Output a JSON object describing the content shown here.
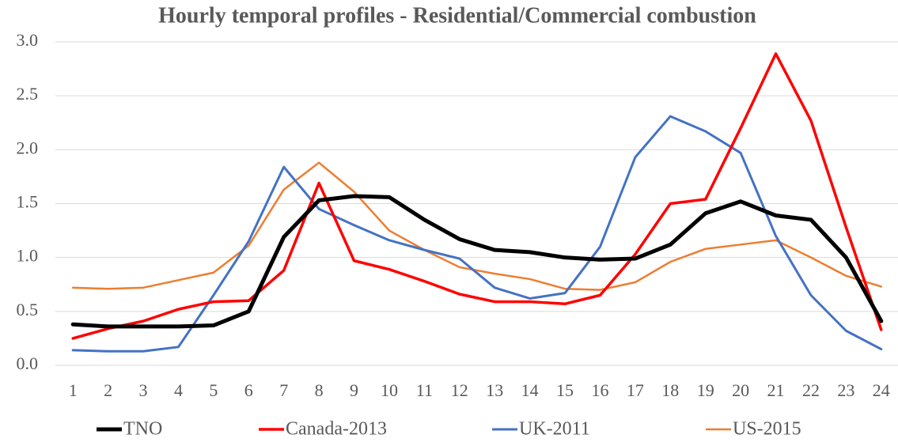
{
  "chart_data": {
    "type": "line",
    "title": "Hourly temporal profiles - Residential/Commercial combustion",
    "categories": [
      "1",
      "2",
      "3",
      "4",
      "5",
      "6",
      "7",
      "8",
      "9",
      "10",
      "11",
      "12",
      "13",
      "14",
      "15",
      "16",
      "17",
      "18",
      "19",
      "20",
      "21",
      "22",
      "23",
      "24"
    ],
    "series": [
      {
        "name": "TNO",
        "color": "#000000",
        "values": [
          0.38,
          0.36,
          0.36,
          0.36,
          0.37,
          0.5,
          1.19,
          1.53,
          1.57,
          1.56,
          1.35,
          1.17,
          1.07,
          1.05,
          1.0,
          0.98,
          0.99,
          1.12,
          1.41,
          1.52,
          1.39,
          1.35,
          1.0,
          0.41
        ]
      },
      {
        "name": "Canada-2013",
        "color": "#ff0000",
        "values": [
          0.25,
          0.34,
          0.41,
          0.52,
          0.59,
          0.6,
          0.88,
          1.69,
          0.97,
          0.89,
          0.78,
          0.66,
          0.59,
          0.59,
          0.57,
          0.65,
          1.03,
          1.5,
          1.54,
          2.2,
          2.89,
          2.27,
          1.28,
          0.33
        ]
      },
      {
        "name": "UK-2011",
        "color": "#4472c4",
        "values": [
          0.14,
          0.13,
          0.13,
          0.17,
          0.65,
          1.15,
          1.84,
          1.45,
          1.3,
          1.16,
          1.07,
          0.99,
          0.72,
          0.62,
          0.67,
          1.1,
          1.93,
          2.31,
          2.17,
          1.97,
          1.2,
          0.65,
          0.32,
          0.15
        ]
      },
      {
        "name": "US-2015",
        "color": "#ed7d31",
        "values": [
          0.72,
          0.71,
          0.72,
          0.79,
          0.86,
          1.11,
          1.63,
          1.88,
          1.61,
          1.25,
          1.07,
          0.91,
          0.85,
          0.8,
          0.71,
          0.7,
          0.77,
          0.96,
          1.08,
          1.12,
          1.16,
          1.0,
          0.83,
          0.73
        ]
      }
    ],
    "ylim": [
      0,
      3
    ],
    "yticks": [
      {
        "value": 0,
        "label": "0.0"
      },
      0.5,
      {
        "value": 1,
        "label": "1.0"
      },
      1.5,
      {
        "value": 2,
        "label": "2.0"
      },
      2.5,
      {
        "value": 3,
        "label": "3.0"
      }
    ],
    "grid": true,
    "legend": "bottom"
  }
}
